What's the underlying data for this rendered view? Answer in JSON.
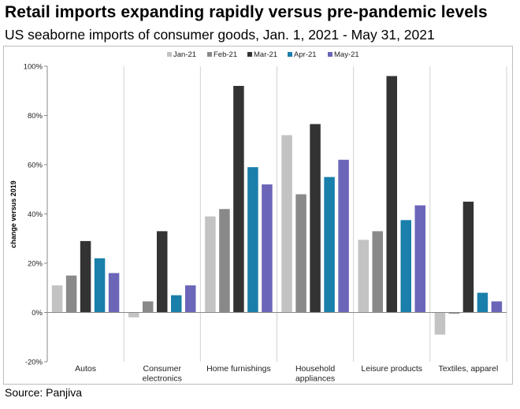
{
  "header": {
    "title": "Retail imports expanding rapidly versus pre-pandemic levels",
    "subtitle": "US seaborne imports of consumer goods, Jan. 1, 2021 - May 31, 2021"
  },
  "footer": {
    "source": "Source: Panjiva"
  },
  "chart_data": {
    "type": "bar",
    "title": "Retail imports expanding rapidly versus pre-pandemic levels",
    "subtitle": "US seaborne imports of consumer goods, Jan. 1, 2021 - May 31, 2021",
    "xlabel": "",
    "ylabel": "change versus 2019",
    "ylim": [
      -20,
      100
    ],
    "yticks": [
      -20,
      0,
      20,
      40,
      60,
      80,
      100
    ],
    "ytick_labels": [
      "-20%",
      "0%",
      "20%",
      "40%",
      "60%",
      "80%",
      "100%"
    ],
    "categories": [
      [
        "Autos"
      ],
      [
        "Consumer",
        "electronics"
      ],
      [
        "Home furnishings"
      ],
      [
        "Household",
        "appliances"
      ],
      [
        "Leisure products"
      ],
      [
        "Textiles, apparel"
      ]
    ],
    "series": [
      {
        "name": "Jan-21",
        "color": "#c3c3c3",
        "values": [
          11,
          -2,
          39,
          72,
          29.5,
          -9
        ]
      },
      {
        "name": "Feb-21",
        "color": "#898989",
        "values": [
          15,
          4.5,
          42,
          48,
          33,
          -0.5
        ]
      },
      {
        "name": "Mar-21",
        "color": "#333333",
        "values": [
          29,
          33,
          92,
          76.5,
          96,
          45
        ]
      },
      {
        "name": "Apr-21",
        "color": "#1a7fab",
        "values": [
          22,
          7,
          59,
          55,
          37.5,
          8
        ]
      },
      {
        "name": "May-21",
        "color": "#6b66b8",
        "values": [
          16,
          11,
          52,
          62,
          43.5,
          4.5
        ]
      }
    ],
    "legend": "top-center",
    "grid": false,
    "category_separators": true
  }
}
